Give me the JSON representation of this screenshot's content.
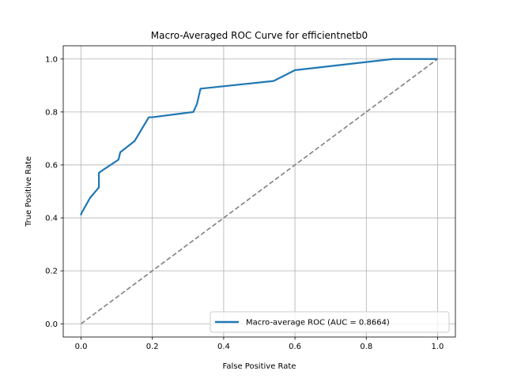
{
  "chart_data": {
    "type": "line",
    "title": "Macro-Averaged ROC Curve for efficientnetb0",
    "xlabel": "False Positive Rate",
    "ylabel": "True Positive Rate",
    "xlim": [
      -0.05,
      1.05
    ],
    "ylim": [
      -0.05,
      1.05
    ],
    "xticks": [
      "0.0",
      "0.2",
      "0.4",
      "0.6",
      "0.8",
      "1.0"
    ],
    "yticks": [
      "0.0",
      "0.2",
      "0.4",
      "0.6",
      "0.8",
      "1.0"
    ],
    "grid": true,
    "legend": {
      "position": "lower-right"
    },
    "series": [
      {
        "name": "Macro-average ROC (AUC = 0.8664)",
        "color": "#1f77b4",
        "style": "solid",
        "x": [
          0.0,
          0.0,
          0.025,
          0.05,
          0.05,
          0.055,
          0.105,
          0.11,
          0.15,
          0.19,
          0.2,
          0.315,
          0.325,
          0.335,
          0.54,
          0.6,
          0.875,
          1.0
        ],
        "y": [
          0.41,
          0.415,
          0.475,
          0.515,
          0.57,
          0.575,
          0.62,
          0.648,
          0.69,
          0.78,
          0.78,
          0.8,
          0.83,
          0.888,
          0.917,
          0.958,
          1.0,
          1.0
        ]
      },
      {
        "color": "#808080",
        "style": "dashed",
        "x": [
          0.0,
          1.0
        ],
        "y": [
          0.0,
          1.0
        ]
      }
    ]
  }
}
